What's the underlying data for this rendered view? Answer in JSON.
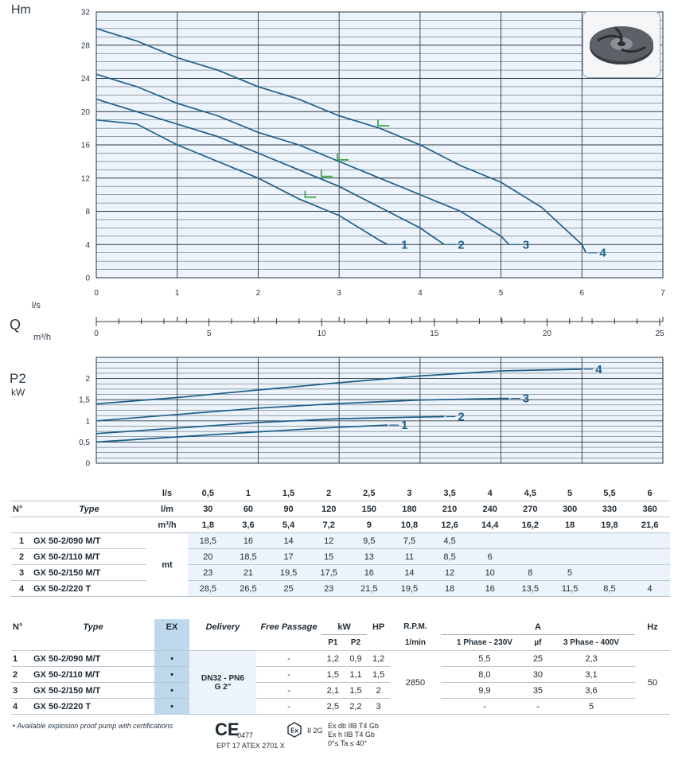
{
  "chart_data": [
    {
      "type": "line",
      "ylabel": "Hm",
      "x_unit": "l/s",
      "xlim": [
        0,
        7
      ],
      "ylim": [
        0,
        32
      ],
      "xticks": [
        "0",
        "1",
        "2",
        "3",
        "4",
        "5",
        "6",
        "7"
      ],
      "yticks": [
        "0",
        "4",
        "8",
        "12",
        "16",
        "20",
        "24",
        "28",
        "32"
      ],
      "grid": true,
      "series": [
        {
          "name": "1",
          "x": [
            0,
            0.5,
            1,
            1.5,
            2,
            2.5,
            3,
            3.5,
            3.6
          ],
          "y": [
            19,
            18.5,
            16,
            14,
            12,
            9.5,
            7.5,
            4.5,
            4
          ]
        },
        {
          "name": "2",
          "x": [
            0,
            0.5,
            1,
            1.5,
            2,
            2.5,
            3,
            3.5,
            4,
            4.3
          ],
          "y": [
            21.5,
            20,
            18.5,
            17,
            15,
            13,
            11,
            8.5,
            6,
            4
          ]
        },
        {
          "name": "3",
          "x": [
            0,
            0.5,
            1,
            1.5,
            2,
            2.5,
            3,
            3.5,
            4,
            4.5,
            5,
            5.1
          ],
          "y": [
            24.5,
            23,
            21,
            19.5,
            17.5,
            16,
            14,
            12,
            10,
            8,
            5,
            4
          ]
        },
        {
          "name": "4",
          "x": [
            0,
            0.5,
            1,
            1.5,
            2,
            2.5,
            3,
            3.5,
            4,
            4.5,
            5,
            5.5,
            6,
            6.05
          ],
          "y": [
            30,
            28.5,
            26.5,
            25,
            23,
            21.5,
            19.5,
            18,
            16,
            13.5,
            11.5,
            8.5,
            4,
            3
          ]
        }
      ],
      "markers": [
        {
          "series": "1",
          "x": 2.6,
          "y": 9.7
        },
        {
          "series": "2",
          "x": 2.8,
          "y": 12.2
        },
        {
          "series": "3",
          "x": 3.0,
          "y": 14.2
        },
        {
          "series": "4",
          "x": 3.5,
          "y": 18.3
        }
      ]
    },
    {
      "type": "axis",
      "label": "Q",
      "units": [
        "l/s",
        "m³/h"
      ],
      "xlim": [
        0,
        25
      ],
      "xticks": [
        "0",
        "5",
        "10",
        "15",
        "20",
        "25"
      ]
    },
    {
      "type": "line",
      "ylabel": "P2",
      "yunit": "kW",
      "xlim": [
        0,
        7
      ],
      "ylim": [
        0,
        2.5
      ],
      "yticks": [
        "0",
        "0,5",
        "1",
        "1,5",
        "2"
      ],
      "grid": true,
      "series": [
        {
          "name": "1",
          "x": [
            0,
            1,
            2,
            3,
            3.6
          ],
          "y": [
            0.5,
            0.62,
            0.74,
            0.85,
            0.9
          ]
        },
        {
          "name": "2",
          "x": [
            0,
            1,
            2,
            3,
            4,
            4.3
          ],
          "y": [
            0.7,
            0.83,
            0.96,
            1.05,
            1.09,
            1.1
          ]
        },
        {
          "name": "3",
          "x": [
            0,
            1,
            2,
            3,
            4,
            5,
            5.1
          ],
          "y": [
            1.0,
            1.15,
            1.3,
            1.41,
            1.49,
            1.53,
            1.53
          ]
        },
        {
          "name": "4",
          "x": [
            0,
            1,
            2,
            3,
            4,
            5,
            6
          ],
          "y": [
            1.4,
            1.55,
            1.73,
            1.9,
            2.06,
            2.18,
            2.22
          ]
        }
      ]
    }
  ],
  "perf_table": {
    "col_no": "N°",
    "col_type": "Type",
    "unit_ls": "l/s",
    "unit_lm": "l/m",
    "unit_m3h": "m³/h",
    "mt": "mt",
    "ls": [
      "0,5",
      "1",
      "1,5",
      "2",
      "2,5",
      "3",
      "3,5",
      "4",
      "4,5",
      "5",
      "5,5",
      "6"
    ],
    "lm": [
      "30",
      "60",
      "90",
      "120",
      "150",
      "180",
      "210",
      "240",
      "270",
      "300",
      "330",
      "360"
    ],
    "m3h": [
      "1,8",
      "3,6",
      "5,4",
      "7,2",
      "9",
      "10,8",
      "12,6",
      "14,4",
      "16,2",
      "18",
      "19,8",
      "21,6"
    ],
    "rows": [
      {
        "no": "1",
        "type": "GX 50-2/090 M/T",
        "vals": [
          "18,5",
          "16",
          "14",
          "12",
          "9,5",
          "7,5",
          "4,5",
          "",
          "",
          "",
          "",
          ""
        ]
      },
      {
        "no": "2",
        "type": "GX 50-2/110 M/T",
        "vals": [
          "20",
          "18,5",
          "17",
          "15",
          "13",
          "11",
          "8,5",
          "6",
          "",
          "",
          "",
          ""
        ]
      },
      {
        "no": "3",
        "type": "GX 50-2/150 M/T",
        "vals": [
          "23",
          "21",
          "19,5",
          "17,5",
          "16",
          "14",
          "12",
          "10",
          "8",
          "5",
          "",
          ""
        ]
      },
      {
        "no": "4",
        "type": "GX 50-2/220  T",
        "vals": [
          "28,5",
          "26,5",
          "25",
          "23",
          "21,5",
          "19,5",
          "18",
          "16",
          "13,5",
          "11,5",
          "8,5",
          "4"
        ]
      }
    ]
  },
  "spec_table": {
    "h_no": "N°",
    "h_type": "Type",
    "h_ex": "EX",
    "h_delivery": "Delivery",
    "h_free": "Free Passage",
    "h_kw": "kW",
    "h_p1": "P1",
    "h_p2": "P2",
    "h_hp": "HP",
    "h_rpm": "R.P.M.",
    "h_rpm_unit": "1/min",
    "h_a": "A",
    "h_1ph": "1 Phase - 230V",
    "h_uf": "µf",
    "h_3ph": "3 Phase - 400V",
    "h_hz": "Hz",
    "delivery_1": "DN32 - PN6",
    "delivery_2": "G 2\"",
    "rpm": "2850",
    "hz": "50",
    "rows": [
      {
        "no": "1",
        "type": "GX 50-2/090 M/T",
        "ex": "•",
        "free": "-",
        "p1": "1,2",
        "p2": "0,9",
        "hp": "1,2",
        "a1": "5,5",
        "uf": "25",
        "a3": "2,3"
      },
      {
        "no": "2",
        "type": "GX 50-2/110 M/T",
        "ex": "•",
        "free": "-",
        "p1": "1,5",
        "p2": "1,1",
        "hp": "1,5",
        "a1": "8,0",
        "uf": "30",
        "a3": "3,1"
      },
      {
        "no": "3",
        "type": "GX 50-2/150 M/T",
        "ex": "•",
        "free": "-",
        "p1": "2,1",
        "p2": "1,5",
        "hp": "2",
        "a1": "9,9",
        "uf": "35",
        "a3": "3,6"
      },
      {
        "no": "4",
        "type": "GX 50-2/220  T",
        "ex": "•",
        "free": "-",
        "p1": "2,5",
        "p2": "2,2",
        "hp": "3",
        "a1": "-",
        "uf": "-",
        "a3": "5"
      }
    ]
  },
  "footer": {
    "note": "• Available explosion proof pump with certifications",
    "ce_mark": "CE",
    "ce_number": "0477",
    "atex_cert": "EPT 17 ATEX 2701 X",
    "ex_group": "II 2G",
    "ex_line1": "Ex db IIB T4 Gb",
    "ex_line2": "Ex h IIB T4 Gb",
    "ex_line3": "0°≤ Ta ≤ 40°"
  },
  "colors": {
    "curve": "#1b5f8c",
    "marker": "#3aa84a",
    "grid": "#2a3845",
    "panel": "#edf3fa",
    "ex_col": "#bfd9ec"
  }
}
